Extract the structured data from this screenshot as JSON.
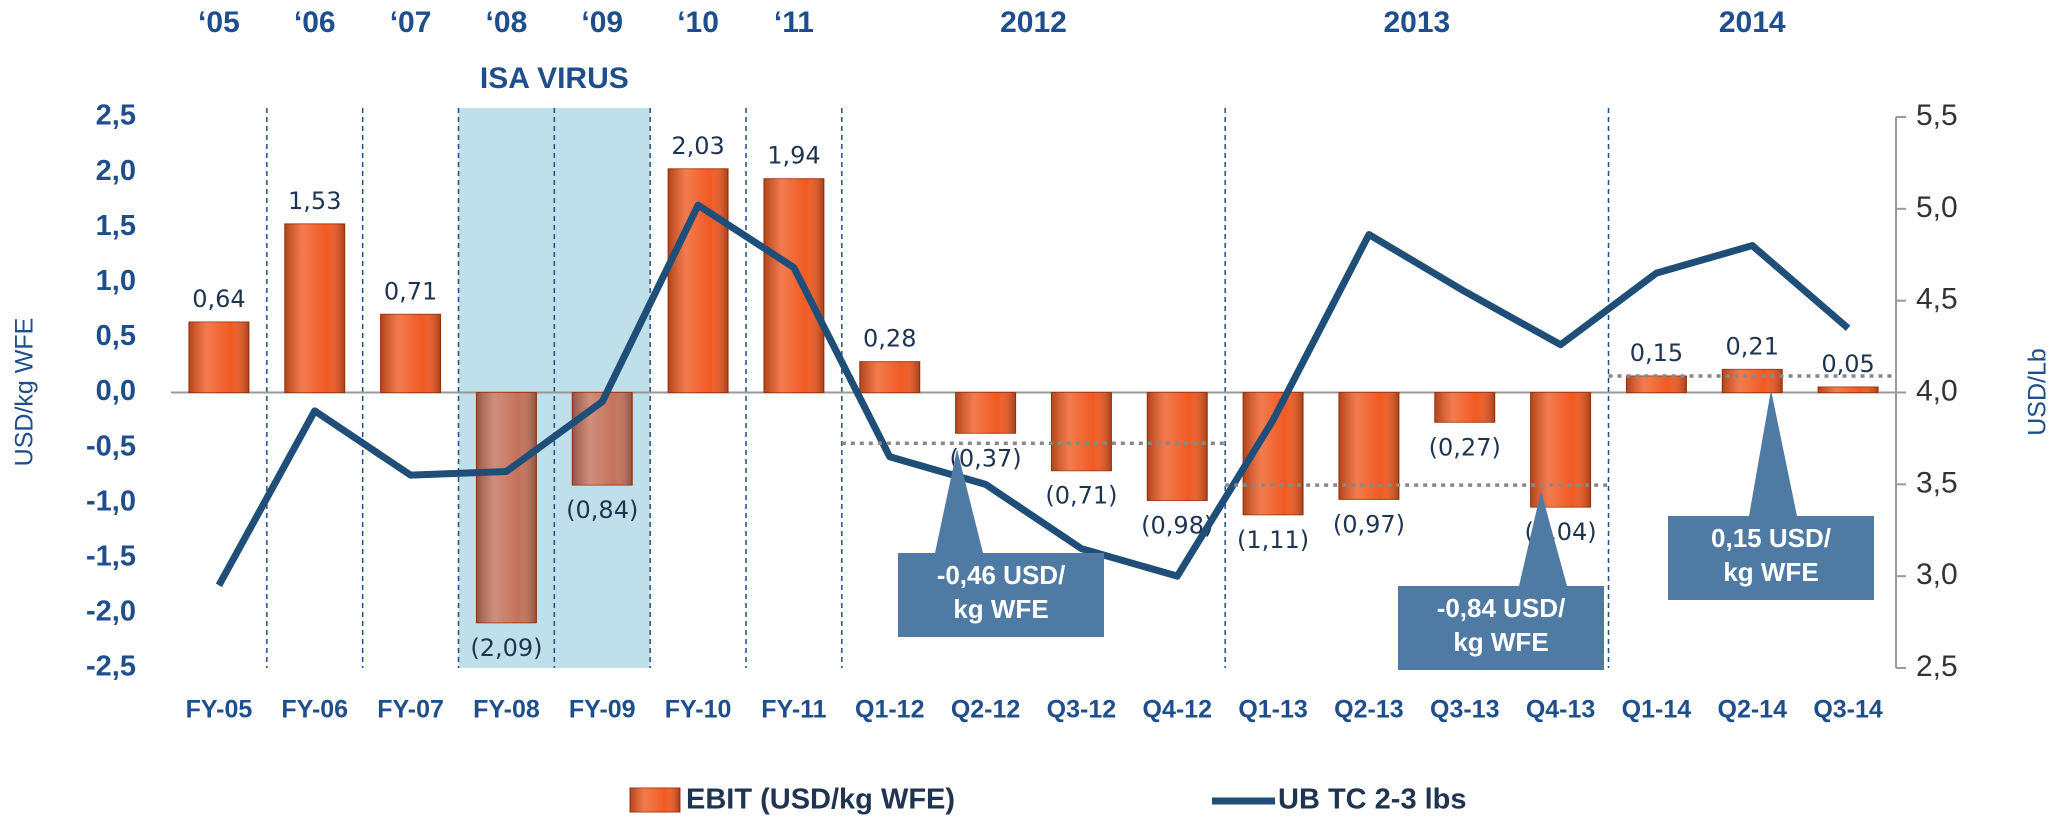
{
  "chart_data": {
    "type": "bar",
    "categories": [
      "FY-05",
      "FY-06",
      "FY-07",
      "FY-08",
      "FY-09",
      "FY-10",
      "FY-11",
      "Q1-12",
      "Q2-12",
      "Q3-12",
      "Q4-12",
      "Q1-13",
      "Q2-13",
      "Q3-13",
      "Q4-13",
      "Q1-14",
      "Q2-14",
      "Q3-14"
    ],
    "series": [
      {
        "name": "EBIT (USD/kg WFE)",
        "type": "bar",
        "color": "#f05a22",
        "values": [
          0.64,
          1.53,
          0.71,
          -2.09,
          -0.84,
          2.03,
          1.94,
          0.28,
          -0.37,
          -0.71,
          -0.98,
          -1.11,
          -0.97,
          -0.27,
          -1.04,
          0.15,
          0.21,
          0.05
        ],
        "value_labels": [
          "0,64",
          "1,53",
          "0,71",
          "(2,09)",
          "(0,84)",
          "2,03",
          "1,94",
          "0,28",
          "(0,37)",
          "(0,71)",
          "(0,98)",
          "(1,11)",
          "(0,97)",
          "(0,27)",
          "(1,04)",
          "0,15",
          "0,21",
          "0,05"
        ]
      },
      {
        "name": "UB TC 2-3 lbs",
        "type": "line",
        "axis": "y2",
        "color": "#1f4e79",
        "values": [
          2.95,
          3.9,
          3.55,
          3.57,
          3.95,
          5.02,
          4.68,
          3.65,
          3.5,
          3.15,
          3.0,
          3.85,
          4.86,
          4.55,
          4.26,
          4.65,
          4.8,
          4.35
        ]
      }
    ],
    "ylabel": "USD/kg WFE",
    "y2label": "USD/Lb",
    "ylim": [
      -2.5,
      2.5
    ],
    "yticks": [
      {
        "value": 2.5,
        "label": "2,5"
      },
      {
        "value": 2.0,
        "label": "2,0"
      },
      {
        "value": 1.5,
        "label": "1,5"
      },
      {
        "value": 1.0,
        "label": "1,0"
      },
      {
        "value": 0.5,
        "label": "0,5"
      },
      {
        "value": 0,
        "label": "0,0"
      },
      {
        "value": -0.5,
        "label": "-0,5"
      },
      {
        "value": -1.0,
        "label": "-1,0"
      },
      {
        "value": -1.5,
        "label": "-1,5"
      },
      {
        "value": -2.0,
        "label": "-2,0"
      },
      {
        "value": -2.5,
        "label": "-2,5"
      }
    ],
    "y2lim": [
      2.5,
      5.5
    ],
    "y2ticks": [
      {
        "value": 5.5,
        "label": "5,5"
      },
      {
        "value": 5.0,
        "label": "5,0"
      },
      {
        "value": 4.5,
        "label": "4,5"
      },
      {
        "value": 4.0,
        "label": "4,0"
      },
      {
        "value": 3.5,
        "label": "3,5"
      },
      {
        "value": 3.0,
        "label": "3,0"
      },
      {
        "value": 2.5,
        "label": "2,5"
      }
    ],
    "periods": [
      {
        "label": "‘05",
        "start": "FY-05",
        "end": "FY-05"
      },
      {
        "label": "‘06",
        "start": "FY-06",
        "end": "FY-06"
      },
      {
        "label": "‘07",
        "start": "FY-07",
        "end": "FY-07"
      },
      {
        "label": "‘08",
        "start": "FY-08",
        "end": "FY-08"
      },
      {
        "label": "‘09",
        "start": "FY-09",
        "end": "FY-09"
      },
      {
        "label": "‘10",
        "start": "FY-10",
        "end": "FY-10"
      },
      {
        "label": "‘11",
        "start": "FY-11",
        "end": "FY-11"
      },
      {
        "label": "2012",
        "start": "Q1-12",
        "end": "Q4-12"
      },
      {
        "label": "2013",
        "start": "Q1-13",
        "end": "Q4-13"
      },
      {
        "label": "2014",
        "start": "Q1-14",
        "end": "Q3-14"
      }
    ],
    "highlight": {
      "label": "ISA VIRUS",
      "start": "FY-08",
      "end": "FY-09",
      "color": "#bfe0ea",
      "bar_color": "#c4725a"
    },
    "averages": [
      {
        "value": -0.46,
        "lines": [
          "-0,46 USD/",
          "kg WFE"
        ],
        "start": "Q1-12",
        "end": "Q4-12"
      },
      {
        "value": -0.84,
        "lines": [
          "-0,84 USD/",
          "kg WFE"
        ],
        "start": "Q1-13",
        "end": "Q4-13"
      },
      {
        "value": 0.15,
        "lines": [
          "0,15 USD/",
          "kg WFE"
        ],
        "start": "Q1-14",
        "end": "Q3-14"
      }
    ]
  }
}
